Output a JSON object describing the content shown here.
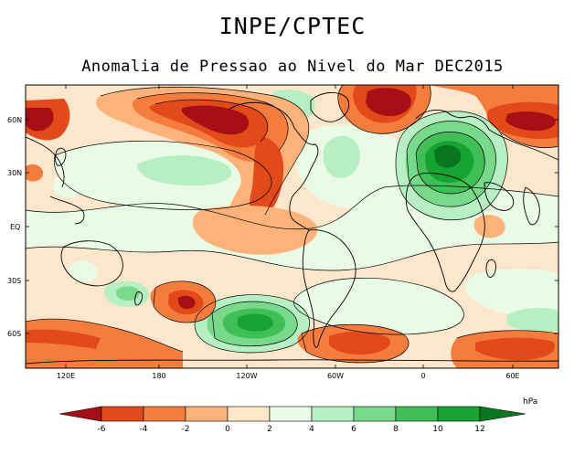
{
  "header": {
    "title": "INPE/CPTEC",
    "subtitle": "Anomalia de Pressao ao Nivel do Mar DEC2015"
  },
  "map": {
    "lat_labels": [
      "60N",
      "30N",
      "EQ",
      "30S",
      "60S"
    ],
    "lon_labels": [
      "120E",
      "180",
      "120W",
      "60W",
      "0",
      "60E"
    ]
  },
  "colorbar": {
    "unit": "hPa",
    "levels": [
      "-6",
      "-4",
      "-2",
      "0",
      "2",
      "4",
      "6",
      "8",
      "10",
      "12"
    ],
    "colors": [
      "#a50f15",
      "#e34a1a",
      "#f47c3c",
      "#fdb27a",
      "#fee6c9",
      "#e9fbe5",
      "#b7efc3",
      "#79d98a",
      "#3fbf55",
      "#17a332",
      "#08771f"
    ]
  }
}
